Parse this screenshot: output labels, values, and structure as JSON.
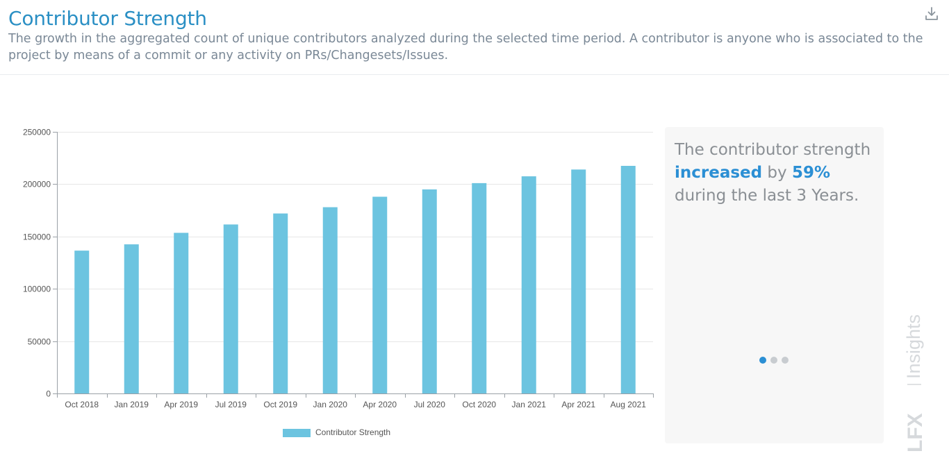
{
  "header": {
    "title": "Contributor Strength",
    "subtitle": "The growth in the aggregated count of unique contributors analyzed during the selected time period. A contributor is anyone who is associated to the project by means of a commit or any activity on PRs/Changesets/Issues."
  },
  "insight": {
    "pre": "The contributor strength ",
    "highlight1": "increased",
    "mid": " by ",
    "highlight2": "59%",
    "post": " during the last 3 Years."
  },
  "carousel": {
    "pages": 3,
    "active": 0
  },
  "brand": {
    "lfx": "LFX",
    "insights": "Insights"
  },
  "icons": {
    "download": "download-icon"
  },
  "colors": {
    "bar": "#6cc4e0",
    "accent": "#2b8fd4",
    "title": "#2a8fc4"
  },
  "chart_data": {
    "type": "bar",
    "categories": [
      "Oct 2018",
      "Jan 2019",
      "Apr 2019",
      "Jul 2019",
      "Oct 2019",
      "Jan 2020",
      "Apr 2020",
      "Jul 2020",
      "Oct 2020",
      "Jan 2021",
      "Apr 2021",
      "Aug 2021"
    ],
    "series": [
      {
        "name": "Contributor Strength",
        "values": [
          136500,
          142500,
          153500,
          161500,
          172000,
          178000,
          188000,
          195000,
          201000,
          207500,
          214000,
          217500
        ]
      }
    ],
    "ylim": [
      0,
      250000
    ],
    "yticks": [
      0,
      50000,
      100000,
      150000,
      200000,
      250000
    ],
    "grid": true,
    "legend": "bottom"
  }
}
